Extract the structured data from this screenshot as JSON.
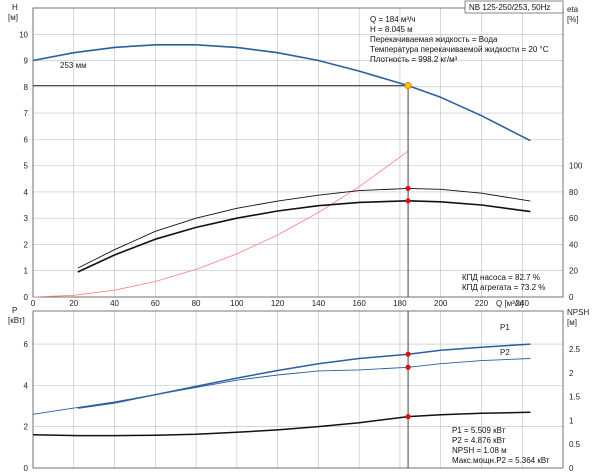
{
  "chart_data": [
    {
      "id": "upper",
      "type": "line",
      "title": "NB 125-250/253, 50Hz",
      "x_label": "Q [м³/ч]",
      "x_ticks": [
        0,
        20,
        40,
        60,
        80,
        100,
        120,
        140,
        160,
        180,
        200,
        220,
        240
      ],
      "xlim": [
        0,
        260
      ],
      "left_axis": {
        "label_top": "H",
        "label_unit": "[м]",
        "ylim": [
          0,
          11
        ],
        "ticks": [
          0,
          1,
          2,
          3,
          4,
          5,
          6,
          7,
          8,
          9,
          10
        ]
      },
      "right_axis": {
        "label_top": "eta",
        "label_unit": "[%]",
        "ylim": [
          0,
          220
        ],
        "ticks": [
          0,
          20,
          40,
          60,
          80,
          100
        ]
      },
      "grid": true,
      "series": [
        {
          "name": "253 мм",
          "axis": "left",
          "color": "#2a5f9e",
          "width": 1.6,
          "x": [
            0,
            20,
            40,
            60,
            80,
            100,
            120,
            140,
            160,
            184,
            200,
            220,
            244
          ],
          "y": [
            9.0,
            9.3,
            9.5,
            9.6,
            9.6,
            9.5,
            9.3,
            9.0,
            8.6,
            8.045,
            7.6,
            6.9,
            5.95
          ]
        },
        {
          "name": "",
          "axis": "right",
          "color": "#ff8080",
          "width": 0.8,
          "x": [
            0,
            20,
            40,
            60,
            80,
            100,
            120,
            140,
            160,
            184
          ],
          "y": [
            0,
            1.3,
            5.2,
            11.8,
            21.0,
            32.8,
            47.2,
            64.3,
            84.0,
            111.0
          ]
        },
        {
          "name": "",
          "axis": "right",
          "color": "#111111",
          "width": 0.9,
          "x": [
            22,
            40,
            60,
            80,
            100,
            120,
            140,
            160,
            184,
            200,
            220,
            244
          ],
          "y": [
            22,
            36,
            50,
            60,
            67.5,
            73,
            77.5,
            81,
            82.7,
            82,
            79,
            73
          ]
        },
        {
          "name": "",
          "axis": "right",
          "color": "#111111",
          "width": 1.6,
          "x": [
            22,
            40,
            60,
            80,
            100,
            120,
            140,
            160,
            184,
            200,
            220,
            244
          ],
          "y": [
            19,
            32,
            44,
            53,
            60,
            65.5,
            69.5,
            72,
            73.2,
            72.5,
            70,
            65
          ]
        }
      ],
      "operating_point": {
        "x": 184,
        "h": 8.045
      },
      "eta_points": [
        82.7,
        73.2
      ],
      "info_top": [
        "Q = 184 м³/ч",
        "H = 8.045 м",
        "Перекачиваемая жидкость = Вода",
        "Температура перекачиваемой жидкости = 20 °C",
        "Плотность = 998.2 кг/м³"
      ],
      "info_bottom": [
        "КПД насоса = 82.7 %",
        "КПД агрегата = 73.2 %"
      ]
    },
    {
      "id": "lower",
      "type": "line",
      "x_label": "",
      "xlim": [
        0,
        260
      ],
      "left_axis": {
        "label_top": "P",
        "label_unit": "[кВт]",
        "ylim": [
          0,
          7.6
        ],
        "ticks": [
          0,
          2,
          4,
          6
        ]
      },
      "right_axis": {
        "label_top": "NPSH",
        "label_unit": "[м]",
        "ylim": [
          0,
          3.3
        ],
        "ticks": [
          0,
          0.5,
          1,
          1.5,
          2,
          2.5
        ]
      },
      "grid": true,
      "series": [
        {
          "name": "P1",
          "axis": "left",
          "color": "#2a5f9e",
          "width": 1.5,
          "x": [
            22,
            40,
            60,
            80,
            100,
            120,
            140,
            160,
            184,
            200,
            220,
            244
          ],
          "y": [
            2.9,
            3.15,
            3.55,
            3.95,
            4.35,
            4.72,
            5.05,
            5.3,
            5.509,
            5.7,
            5.85,
            6.0
          ]
        },
        {
          "name": "P2",
          "axis": "left",
          "color": "#2a5f9e",
          "width": 0.9,
          "x": [
            0,
            20,
            40,
            60,
            80,
            100,
            120,
            140,
            160,
            184,
            200,
            220,
            244
          ],
          "y": [
            2.6,
            2.9,
            3.2,
            3.55,
            3.9,
            4.25,
            4.5,
            4.7,
            4.75,
            4.876,
            5.05,
            5.2,
            5.3
          ]
        },
        {
          "name": "",
          "axis": "right",
          "color": "#111111",
          "width": 1.5,
          "x": [
            0,
            22,
            40,
            60,
            80,
            100,
            120,
            140,
            160,
            184,
            200,
            220,
            244
          ],
          "y": [
            0.7,
            0.68,
            0.68,
            0.69,
            0.71,
            0.75,
            0.8,
            0.87,
            0.95,
            1.08,
            1.12,
            1.15,
            1.17
          ]
        }
      ],
      "markers": {
        "x": 184,
        "p1": 5.509,
        "p2": 4.876,
        "npsh": 1.08
      },
      "info": [
        "P1 = 5.509 кВт",
        "P2 = 4.876 кВт",
        "NPSH = 1.08 м",
        "Макс.мощн.P2 = 5.364 кВт"
      ]
    }
  ]
}
